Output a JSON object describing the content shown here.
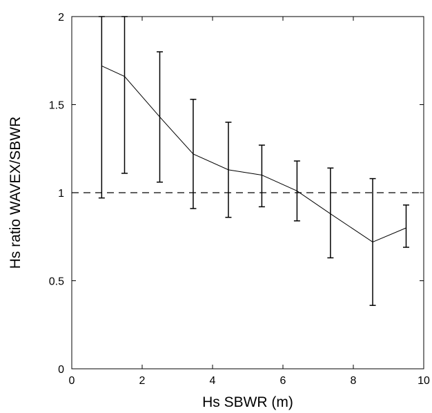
{
  "chart_data": {
    "type": "line",
    "xlabel": "Hs SBWR  (m)",
    "ylabel": "Hs ratio WAVEX/SBWR",
    "xlim": [
      0,
      10
    ],
    "ylim": [
      0,
      2
    ],
    "x_ticks": [
      0,
      2,
      4,
      6,
      8,
      10
    ],
    "y_ticks": [
      0,
      0.5,
      1,
      1.5,
      2
    ],
    "x_tick_labels": [
      "0",
      "2",
      "4",
      "6",
      "8",
      "10"
    ],
    "y_tick_labels": [
      "0",
      "0.5",
      "1",
      "1.5",
      "2"
    ],
    "grid": false,
    "reference_line": {
      "y": 1,
      "style": "dashed"
    },
    "series": [
      {
        "x": [
          0.85,
          1.5,
          2.5,
          3.45,
          4.45,
          5.4,
          6.4,
          7.35,
          8.55,
          9.5
        ],
        "y": [
          1.72,
          1.66,
          1.43,
          1.22,
          1.13,
          1.1,
          1.01,
          0.88,
          0.72,
          0.8
        ],
        "y_lower": [
          0.97,
          1.11,
          1.06,
          0.91,
          0.86,
          0.92,
          0.84,
          0.63,
          0.36,
          0.69
        ],
        "y_upper": [
          2.0,
          2.0,
          1.8,
          1.53,
          1.4,
          1.27,
          1.18,
          1.14,
          1.08,
          0.93
        ]
      }
    ],
    "colors": {
      "line": "#000000",
      "frame": "#000000",
      "background": "#ffffff"
    }
  }
}
